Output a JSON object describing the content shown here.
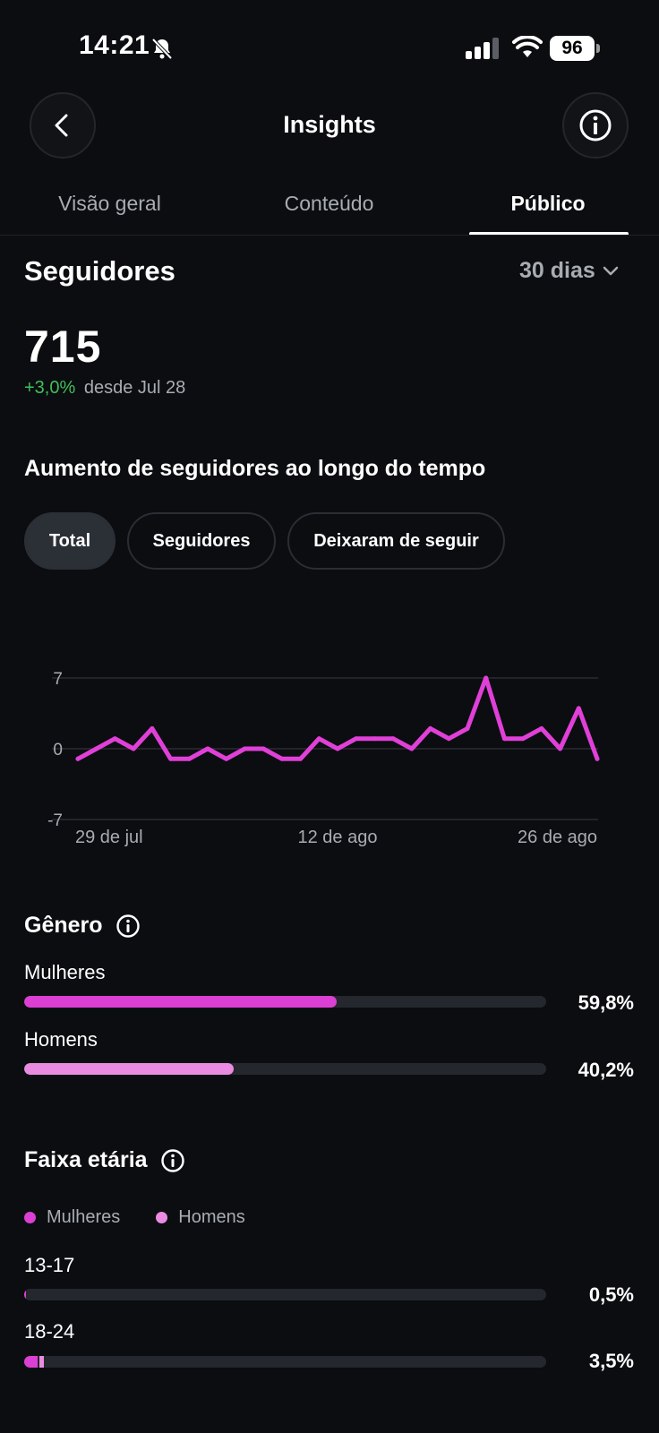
{
  "status_bar": {
    "time": "14:21",
    "battery": "96",
    "icons": [
      "bell-slash-icon",
      "signal-icon",
      "wifi-icon",
      "battery-icon"
    ]
  },
  "header": {
    "title": "Insights",
    "back_icon": "chevron-left-icon",
    "info_icon": "info-icon"
  },
  "tabs": [
    {
      "label": "Visão geral",
      "active": false
    },
    {
      "label": "Conteúdo",
      "active": false
    },
    {
      "label": "Público",
      "active": true
    }
  ],
  "followers": {
    "title": "Seguidores",
    "range": "30 dias",
    "count": "715",
    "change": "+3,0%",
    "since": "desde Jul 28"
  },
  "growth": {
    "title": "Aumento de seguidores ao longo do tempo",
    "chips": [
      {
        "label": "Total",
        "active": true
      },
      {
        "label": "Seguidores",
        "active": false
      },
      {
        "label": "Deixaram de seguir",
        "active": false
      }
    ]
  },
  "chart_data": {
    "type": "line",
    "title": "",
    "xlabel": "",
    "ylabel": "",
    "ylim": [
      -7,
      7
    ],
    "yticks": [
      7,
      0,
      -7
    ],
    "xtick_labels": [
      "29 de jul",
      "12 de ago",
      "26 de ago"
    ],
    "xtick_index": [
      0,
      14,
      28
    ],
    "grid": true,
    "color": "#e040d8",
    "series": [
      {
        "values": [
          -1,
          0,
          1,
          0,
          2,
          -1,
          -1,
          0,
          -1,
          0,
          0,
          -1,
          -1,
          1,
          0,
          1,
          1,
          1,
          0,
          2,
          1,
          2,
          7,
          1,
          1,
          2,
          0,
          4,
          -1
        ]
      }
    ]
  },
  "gender": {
    "title": "Gênero",
    "info_icon": "info-icon",
    "rows": [
      {
        "label": "Mulheres",
        "value": "59,8%",
        "fraction": 0.598,
        "color": "#dc3fd3"
      },
      {
        "label": "Homens",
        "value": "40,2%",
        "fraction": 0.402,
        "color": "#ea8be2"
      }
    ]
  },
  "age": {
    "title": "Faixa etária",
    "info_icon": "info-icon",
    "legend": [
      {
        "label": "Mulheres",
        "color": "#dc3fd3"
      },
      {
        "label": "Homens",
        "color": "#ea8be2"
      }
    ],
    "rows": [
      {
        "label": "13-17",
        "value": "0,5%",
        "women": 0.004,
        "men": 0.0
      },
      {
        "label": "18-24",
        "value": "3,5%",
        "women": 0.026,
        "men": 0.009
      }
    ]
  }
}
